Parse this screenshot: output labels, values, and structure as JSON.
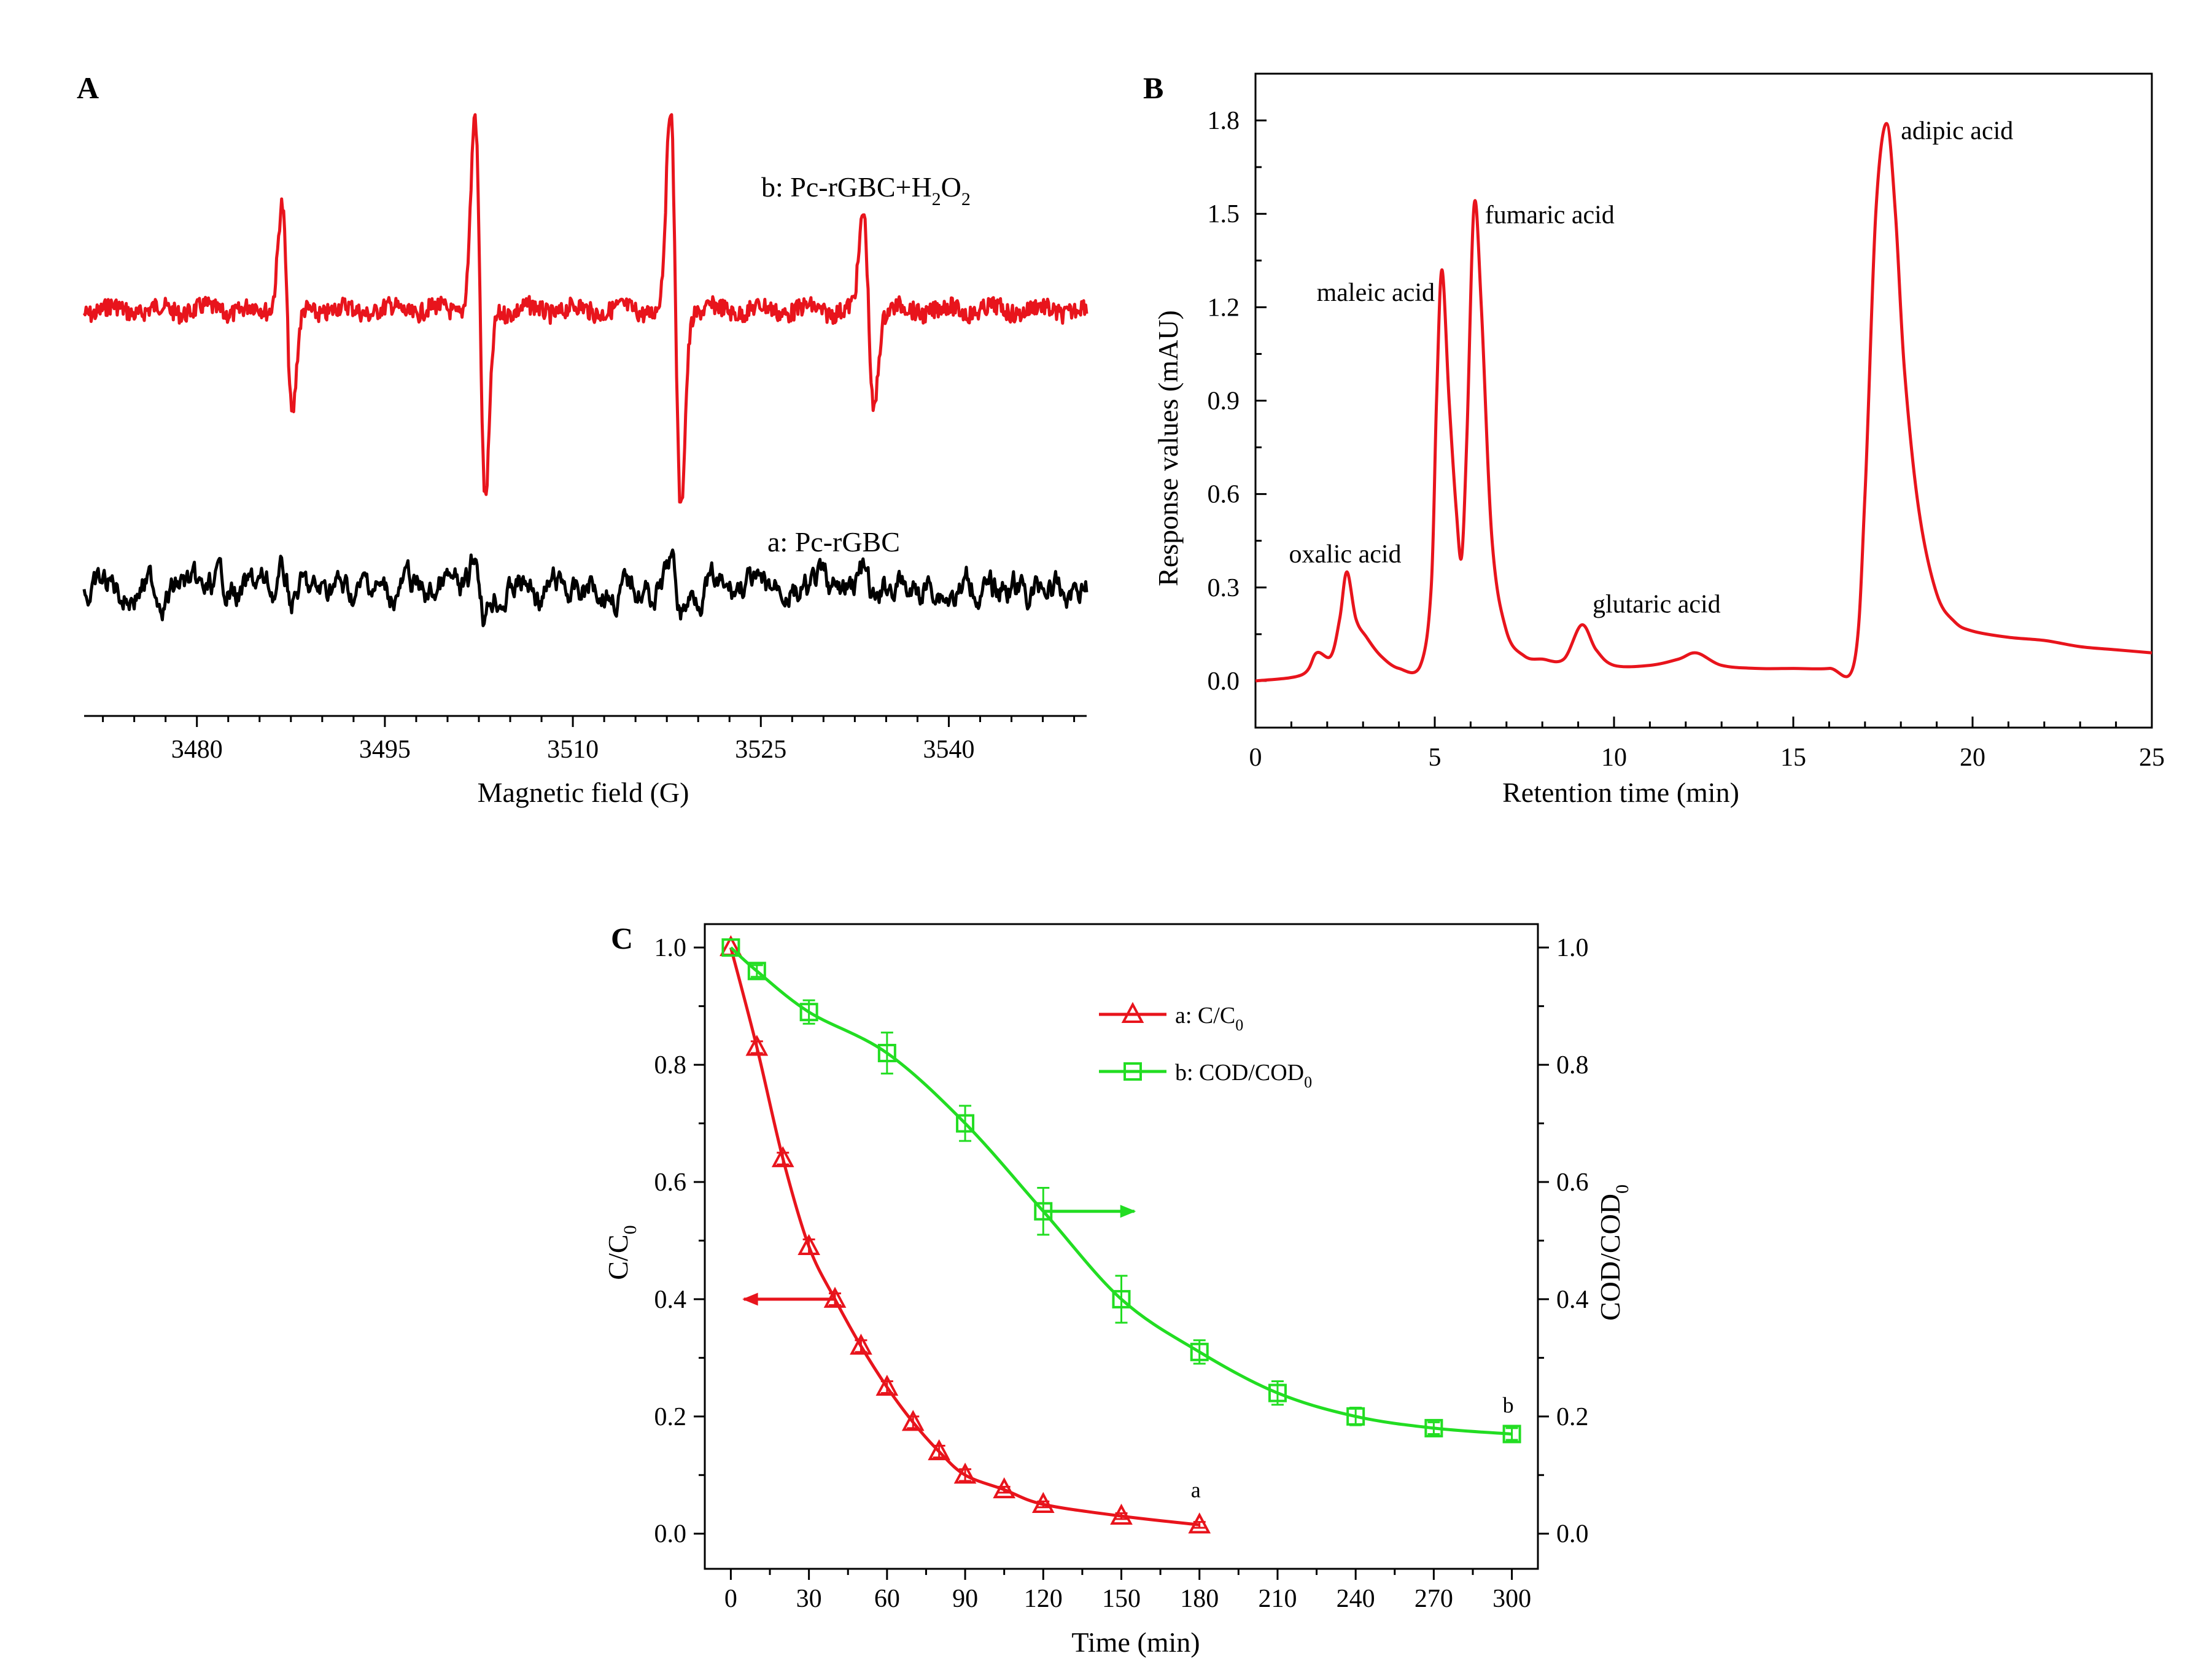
{
  "figure": {
    "colors": {
      "red": "#e8141c",
      "green": "#22dd22",
      "black": "#000000"
    }
  },
  "chart_data": [
    {
      "panel": "A",
      "type": "line",
      "title": "",
      "xlabel": "Magnetic field (G)",
      "ylabel": "",
      "xlim": [
        3471,
        3551
      ],
      "xticks": [
        3480,
        3495,
        3510,
        3525,
        3540
      ],
      "yaxis_shown": false,
      "series": [
        {
          "name": "b: Pc-rGBC+H2O2",
          "label_text": "b: Pc-rGBC+H",
          "label_sub1": "2",
          "label_mid": "O",
          "label_sub2": "2",
          "color": "#e8141c",
          "baseline": 2.0,
          "peaks": [
            {
              "center": 3487.2,
              "amplitude": 0.95
            },
            {
              "center": 3502.6,
              "amplitude": 1.7
            },
            {
              "center": 3518.2,
              "amplitude": 1.75
            },
            {
              "center": 3533.6,
              "amplitude": 0.85
            }
          ]
        },
        {
          "name": "a: Pc-rGBC",
          "label_text": "a: Pc-rGBC",
          "color": "#000000",
          "baseline": 0.0,
          "peaks": [
            {
              "center": 3487.2,
              "amplitude": 0.15
            },
            {
              "center": 3502.6,
              "amplitude": 0.25
            },
            {
              "center": 3518.2,
              "amplitude": 0.18
            },
            {
              "center": 3533.6,
              "amplitude": 0.12
            }
          ]
        }
      ]
    },
    {
      "panel": "B",
      "type": "line",
      "title": "",
      "xlabel": "Retention time (min)",
      "ylabel": "Response values (mAU)",
      "xlim": [
        0,
        25
      ],
      "ylim": [
        -0.15,
        1.95
      ],
      "xticks": [
        0,
        5,
        10,
        15,
        20,
        25
      ],
      "yticks": [
        0.0,
        0.3,
        0.6,
        0.9,
        1.2,
        1.5,
        1.8
      ],
      "series": [
        {
          "name": "chromatogram",
          "color": "#e8141c",
          "x": [
            0,
            1.3,
            1.7,
            2.1,
            2.35,
            2.55,
            2.8,
            3.1,
            3.5,
            4.0,
            4.6,
            4.9,
            5.05,
            5.2,
            5.4,
            5.6,
            5.75,
            5.9,
            6.1,
            6.3,
            6.6,
            7.0,
            7.5,
            8.0,
            8.6,
            9.1,
            9.5,
            10.0,
            11.0,
            11.8,
            12.3,
            13.0,
            14.0,
            15.0,
            16.0,
            16.7,
            17.0,
            17.3,
            17.6,
            17.85,
            18.1,
            18.5,
            19.0,
            19.5,
            20.0,
            21.0,
            22.0,
            23.0,
            24.0,
            25.0
          ],
          "y": [
            0.0,
            0.02,
            0.09,
            0.08,
            0.2,
            0.35,
            0.2,
            0.14,
            0.08,
            0.04,
            0.05,
            0.3,
            0.9,
            1.32,
            0.9,
            0.55,
            0.4,
            0.8,
            1.53,
            1.2,
            0.45,
            0.16,
            0.08,
            0.07,
            0.07,
            0.18,
            0.1,
            0.05,
            0.05,
            0.07,
            0.09,
            0.05,
            0.04,
            0.04,
            0.04,
            0.06,
            0.6,
            1.5,
            1.79,
            1.5,
            1.0,
            0.55,
            0.28,
            0.19,
            0.16,
            0.14,
            0.13,
            0.11,
            0.1,
            0.09
          ]
        }
      ],
      "annotations": [
        {
          "text": "oxalic acid",
          "x": 2.5,
          "y": 0.38
        },
        {
          "text": "maleic acid",
          "x": 5.0,
          "y": 1.22
        },
        {
          "text": "fumaric acid",
          "x": 6.4,
          "y": 1.47
        },
        {
          "text": "glutaric acid",
          "x": 9.4,
          "y": 0.22
        },
        {
          "text": "adipic acid",
          "x": 18.0,
          "y": 1.74
        }
      ]
    },
    {
      "panel": "C",
      "type": "line",
      "title": "",
      "xlabel": "Time (min)",
      "ylabel_left": "C/C",
      "ylabel_left_sub": "0",
      "ylabel_right": "COD/COD",
      "ylabel_right_sub": "0",
      "xlim": [
        -10,
        310
      ],
      "ylim": [
        -0.06,
        1.04
      ],
      "xticks": [
        0,
        30,
        60,
        90,
        120,
        150,
        180,
        210,
        240,
        270,
        300
      ],
      "yticks": [
        0.0,
        0.2,
        0.4,
        0.6,
        0.8,
        1.0
      ],
      "legend_position": "top-right",
      "series": [
        {
          "name": "a: C/C0",
          "legend_text": "a: C/C",
          "legend_sub": "0",
          "end_label": "a",
          "marker": "triangle-open",
          "color": "#e8141c",
          "x": [
            0,
            10,
            20,
            30,
            40,
            50,
            60,
            70,
            80,
            90,
            105,
            120,
            150,
            180
          ],
          "y": [
            1.0,
            0.83,
            0.64,
            0.49,
            0.4,
            0.32,
            0.25,
            0.19,
            0.14,
            0.1,
            0.075,
            0.05,
            0.03,
            0.015
          ],
          "error": [
            0,
            0.01,
            0.01,
            0.012,
            0.01,
            0.01,
            0.01,
            0.01,
            0.01,
            0.01,
            0.005,
            0.005,
            0.005,
            0.005
          ],
          "axis_arrow": {
            "from_x": 40,
            "to_x": 5,
            "y": 0.4
          }
        },
        {
          "name": "b: COD/COD0",
          "legend_text": "b: COD/COD",
          "legend_sub": "0",
          "end_label": "b",
          "marker": "square-open",
          "color": "#22dd22",
          "x": [
            0,
            10,
            30,
            60,
            90,
            120,
            150,
            180,
            210,
            240,
            270,
            300
          ],
          "y": [
            1.0,
            0.96,
            0.89,
            0.82,
            0.7,
            0.55,
            0.4,
            0.31,
            0.24,
            0.2,
            0.18,
            0.17
          ],
          "error": [
            0,
            0.01,
            0.02,
            0.035,
            0.03,
            0.04,
            0.04,
            0.02,
            0.02,
            0.015,
            0.01,
            0.01
          ],
          "axis_arrow": {
            "from_x": 120,
            "to_x": 155,
            "y": 0.55
          }
        }
      ]
    }
  ]
}
